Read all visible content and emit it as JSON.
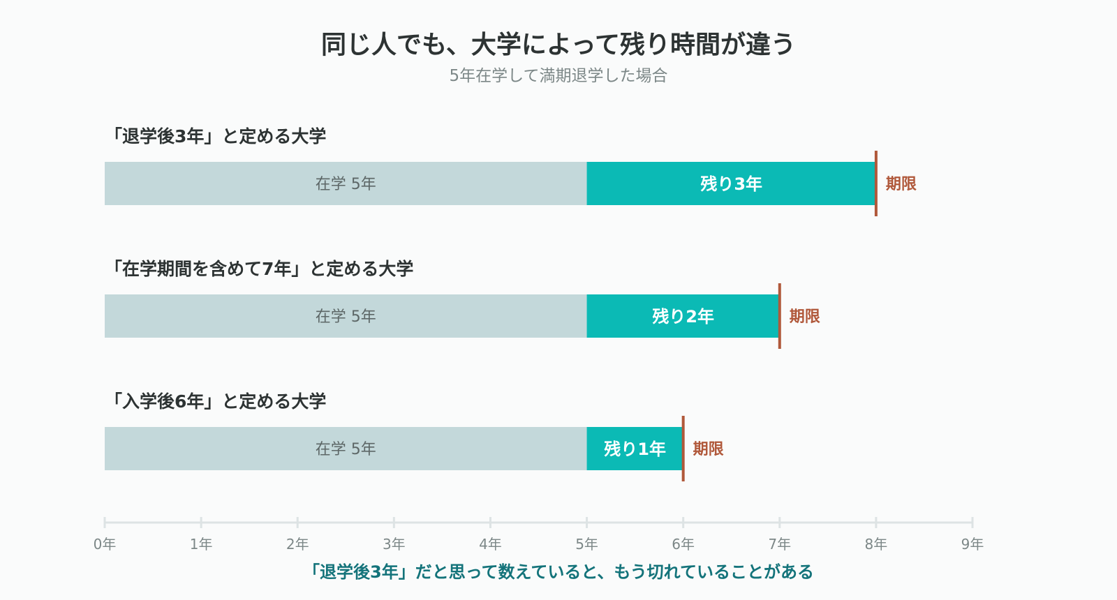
{
  "title": "同じ人でも、大学によって残り時間が違う",
  "subtitle": "5年在学して満期退学した場合",
  "footnote": "「退学後3年」だと思って数えていると、もう切れていることがある",
  "colors": {
    "enrolled": "#c3d8da",
    "remaining": "#0bbab5",
    "deadline": "#b0583a",
    "axis": "#dde3e4"
  },
  "chart_data": {
    "type": "bar",
    "orientation": "horizontal",
    "stacked": true,
    "xlim": [
      0,
      9
    ],
    "x_ticks": [
      0,
      1,
      2,
      3,
      4,
      5,
      6,
      7,
      8,
      9
    ],
    "x_tick_labels": [
      "0年",
      "1年",
      "2年",
      "3年",
      "4年",
      "5年",
      "6年",
      "7年",
      "8年",
      "9年"
    ],
    "unit": "年",
    "categories": [
      "「退学後3年」と定める大学",
      "「在学期間を含めて7年」と定める大学",
      "「入学後6年」と定める大学"
    ],
    "series": [
      {
        "values": [
          5,
          5,
          5
        ],
        "labels": [
          "在学 5年",
          "在学 5年",
          "在学 5年"
        ]
      },
      {
        "values": [
          3,
          2,
          1
        ],
        "labels": [
          "残り3年",
          "残り2年",
          "残り1年"
        ]
      }
    ],
    "deadlines": [
      8,
      7,
      6
    ],
    "deadline_label": "期限"
  }
}
